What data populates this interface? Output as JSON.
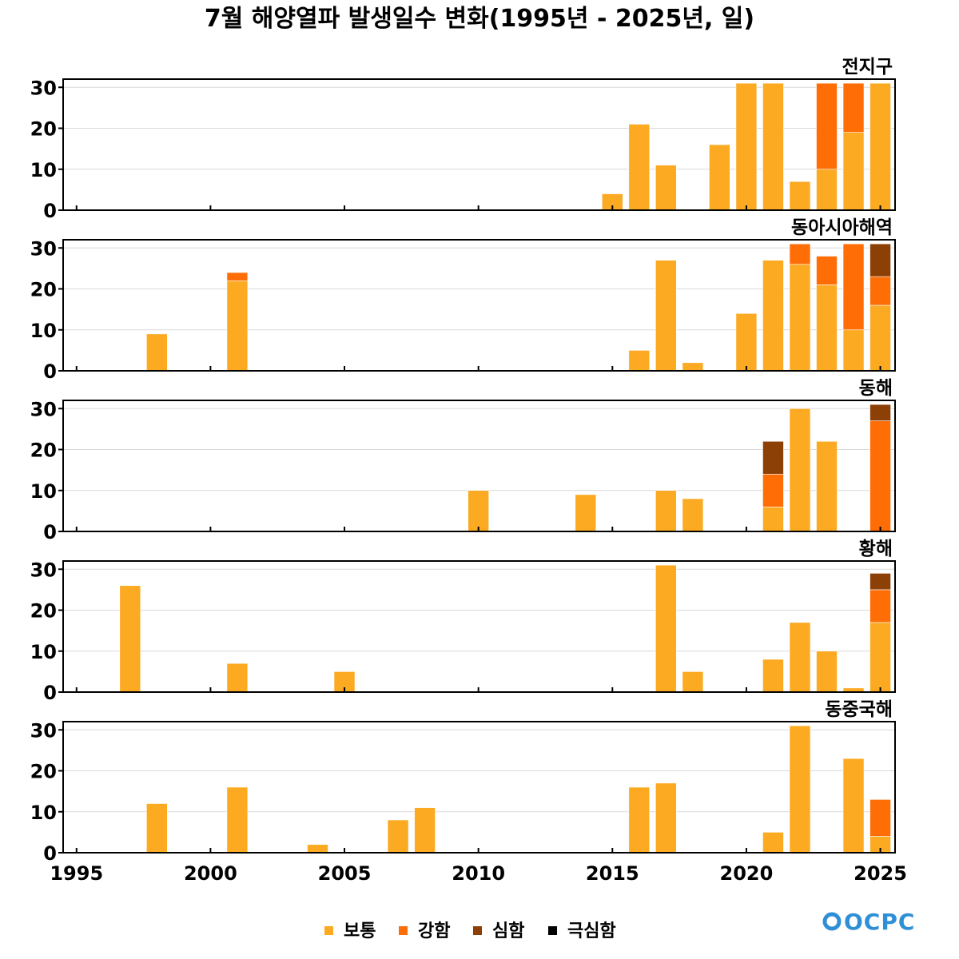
{
  "title": "7월 해양열파 발생일수 변화(1995년 - 2025년, 일)",
  "logo": "OCPC",
  "colors": {
    "보통": "#FBAA22",
    "강함": "#FE6D06",
    "심함": "#8C4006",
    "극심함": "#000000",
    "grid": "#d9d9d9",
    "axis": "#000000"
  },
  "chart_data": {
    "type": "bar",
    "stacked": true,
    "x_range": [
      1995,
      2025
    ],
    "xticks": [
      1995,
      2000,
      2005,
      2010,
      2015,
      2020,
      2025
    ],
    "xtick_labels": [
      "1995",
      "2000",
      "2005",
      "2010",
      "2015",
      "2020",
      "2025"
    ],
    "ylim": [
      0,
      32
    ],
    "yticks": [
      0,
      10,
      20,
      30
    ],
    "ytick_labels": [
      "0",
      "10",
      "20",
      "30"
    ],
    "grid": "horizontal",
    "legend": {
      "placement": "bottom-center",
      "entries": [
        "보통",
        "강함",
        "심함",
        "극심함"
      ]
    },
    "panels": [
      {
        "name": "전지구",
        "bars": [
          {
            "year": 2015,
            "보통": 4
          },
          {
            "year": 2016,
            "보통": 21
          },
          {
            "year": 2017,
            "보통": 11
          },
          {
            "year": 2019,
            "보통": 16
          },
          {
            "year": 2020,
            "보통": 31
          },
          {
            "year": 2021,
            "보통": 31
          },
          {
            "year": 2022,
            "보통": 7
          },
          {
            "year": 2023,
            "보통": 10,
            "강함": 21
          },
          {
            "year": 2024,
            "보통": 19,
            "강함": 12
          },
          {
            "year": 2025,
            "보통": 31
          }
        ]
      },
      {
        "name": "동아시아해역",
        "bars": [
          {
            "year": 1998,
            "보통": 9
          },
          {
            "year": 2001,
            "보통": 22,
            "강함": 2
          },
          {
            "year": 2016,
            "보통": 5
          },
          {
            "year": 2017,
            "보통": 27
          },
          {
            "year": 2018,
            "보통": 2
          },
          {
            "year": 2020,
            "보통": 14
          },
          {
            "year": 2021,
            "보통": 27
          },
          {
            "year": 2022,
            "보통": 26,
            "강함": 5
          },
          {
            "year": 2023,
            "보통": 21,
            "강함": 7
          },
          {
            "year": 2024,
            "보통": 10,
            "강함": 21
          },
          {
            "year": 2025,
            "보통": 16,
            "강함": 7,
            "심함": 8
          }
        ]
      },
      {
        "name": "동해",
        "bars": [
          {
            "year": 2010,
            "보통": 10
          },
          {
            "year": 2014,
            "보통": 9
          },
          {
            "year": 2017,
            "보통": 10
          },
          {
            "year": 2018,
            "보통": 8
          },
          {
            "year": 2021,
            "보통": 6,
            "강함": 8,
            "심함": 8
          },
          {
            "year": 2022,
            "보통": 30
          },
          {
            "year": 2023,
            "보통": 22
          },
          {
            "year": 2025,
            "강함": 27,
            "심함": 4
          }
        ]
      },
      {
        "name": "황해",
        "bars": [
          {
            "year": 1997,
            "보통": 26
          },
          {
            "year": 2001,
            "보통": 7
          },
          {
            "year": 2005,
            "보통": 5
          },
          {
            "year": 2017,
            "보통": 31
          },
          {
            "year": 2018,
            "보통": 5
          },
          {
            "year": 2021,
            "보통": 8
          },
          {
            "year": 2022,
            "보통": 17
          },
          {
            "year": 2023,
            "보통": 10
          },
          {
            "year": 2024,
            "보통": 1
          },
          {
            "year": 2025,
            "보통": 17,
            "강함": 8,
            "심함": 4
          }
        ]
      },
      {
        "name": "동중국해",
        "bars": [
          {
            "year": 1998,
            "보통": 12
          },
          {
            "year": 2001,
            "보통": 16
          },
          {
            "year": 2004,
            "보통": 2
          },
          {
            "year": 2007,
            "보통": 8
          },
          {
            "year": 2008,
            "보통": 11
          },
          {
            "year": 2016,
            "보통": 16
          },
          {
            "year": 2017,
            "보통": 17
          },
          {
            "year": 2021,
            "보통": 5
          },
          {
            "year": 2022,
            "보통": 31
          },
          {
            "year": 2024,
            "보통": 23
          },
          {
            "year": 2025,
            "보통": 4,
            "강함": 9
          }
        ]
      }
    ]
  }
}
